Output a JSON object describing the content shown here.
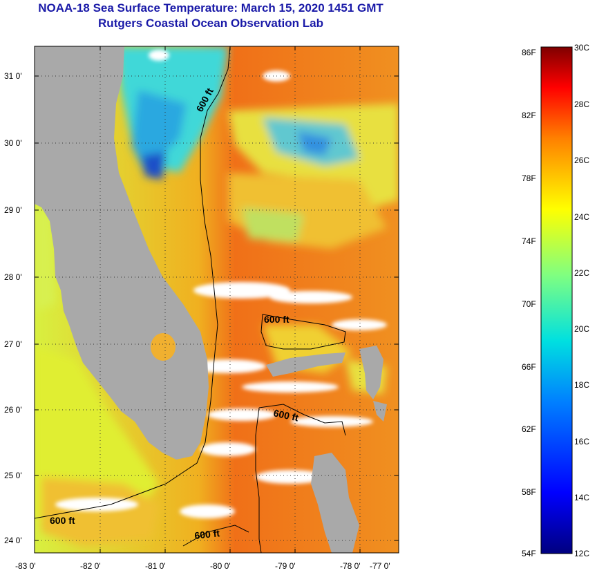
{
  "title": "NOAA-18 Sea Surface Temperature:  March 15, 2020 1451 GMT",
  "subtitle": "Rutgers Coastal Ocean Observation Lab",
  "map": {
    "latitude_labels": [
      "31 0'",
      "30 0'",
      "29 0'",
      "28 0'",
      "27 0'",
      "26 0'",
      "25 0'",
      "24 0'"
    ],
    "longitude_labels": [
      "-83 0'",
      "-82 0'",
      "-81 0'",
      "-80 0'",
      "-79 0'",
      "-78 0'",
      "-77 0'"
    ],
    "contour_labels": [
      "600 ft",
      "600 ft",
      "600 ft",
      "600 ft",
      "600 ft"
    ],
    "colors": {
      "land": "#a9a9a9",
      "cloud": "#ffffff",
      "contour": "#000000"
    }
  },
  "colorbar": {
    "fahrenheit_labels": [
      "86F",
      "82F",
      "78F",
      "74F",
      "70F",
      "66F",
      "62F",
      "58F",
      "54F"
    ],
    "celsius_labels": [
      "30C",
      "28C",
      "26C",
      "24C",
      "22C",
      "20C",
      "18C",
      "16C",
      "14C",
      "12C"
    ],
    "range_celsius": [
      12,
      30
    ],
    "range_fahrenheit": [
      54,
      86
    ]
  }
}
